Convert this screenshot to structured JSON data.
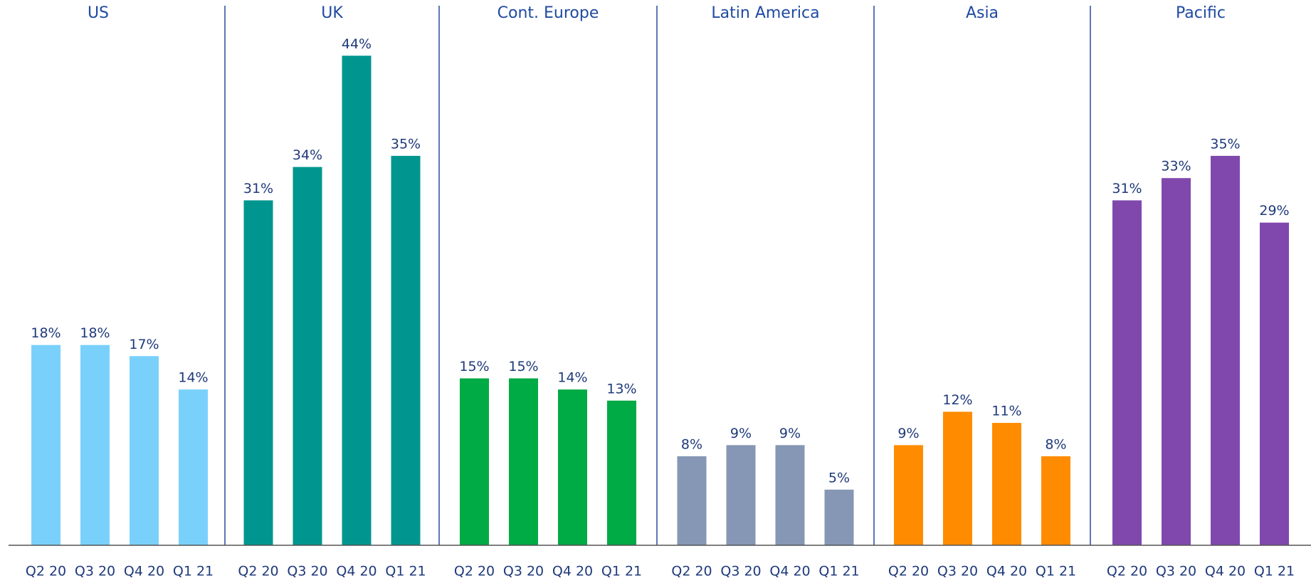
{
  "chart_data": [
    {
      "type": "bar",
      "title": "US",
      "categories": [
        "Q2 20",
        "Q3 20",
        "Q4 20",
        "Q1 21"
      ],
      "values": [
        18,
        18,
        17,
        14
      ],
      "value_labels": [
        "18%",
        "18%",
        "17%",
        "14%"
      ],
      "color": "#79d1fb",
      "ylim": [
        0,
        46
      ]
    },
    {
      "type": "bar",
      "title": "UK",
      "categories": [
        "Q2 20",
        "Q3 20",
        "Q4 20",
        "Q1 21"
      ],
      "values": [
        31,
        34,
        44,
        35
      ],
      "value_labels": [
        "31%",
        "34%",
        "44%",
        "35%"
      ],
      "color": "#00968f",
      "ylim": [
        0,
        46
      ]
    },
    {
      "type": "bar",
      "title": "Cont. Europe",
      "categories": [
        "Q2 20",
        "Q3 20",
        "Q4 20",
        "Q1 21"
      ],
      "values": [
        15,
        15,
        14,
        13
      ],
      "value_labels": [
        "15%",
        "15%",
        "14%",
        "13%"
      ],
      "color": "#00aa44",
      "ylim": [
        0,
        46
      ]
    },
    {
      "type": "bar",
      "title": "Latin America",
      "categories": [
        "Q2 20",
        "Q3 20",
        "Q4 20",
        "Q1 21"
      ],
      "values": [
        8,
        9,
        9,
        5
      ],
      "value_labels": [
        "8%",
        "9%",
        "9%",
        "5%"
      ],
      "color": "#8597b4",
      "ylim": [
        0,
        46
      ]
    },
    {
      "type": "bar",
      "title": "Asia",
      "categories": [
        "Q2 20",
        "Q3 20",
        "Q4 20",
        "Q1 21"
      ],
      "values": [
        9,
        12,
        11,
        8
      ],
      "value_labels": [
        "9%",
        "12%",
        "11%",
        "8%"
      ],
      "color": "#ff8c00",
      "ylim": [
        0,
        46
      ]
    },
    {
      "type": "bar",
      "title": "Pacific",
      "categories": [
        "Q2 20",
        "Q3 20",
        "Q4 20",
        "Q1 21"
      ],
      "values": [
        31,
        33,
        35,
        29
      ],
      "value_labels": [
        "31%",
        "33%",
        "35%",
        "29%"
      ],
      "color": "#8048ad",
      "ylim": [
        0,
        46
      ]
    }
  ]
}
